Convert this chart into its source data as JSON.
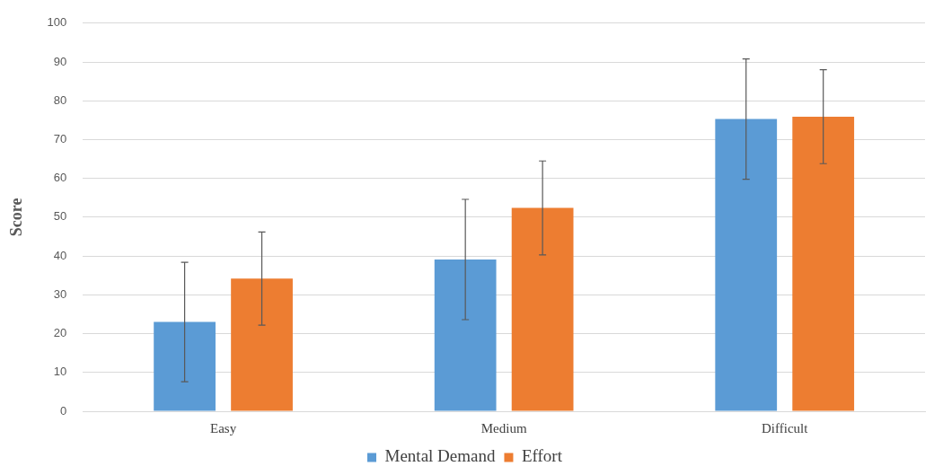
{
  "chart_data": {
    "type": "bar",
    "ylabel": "Score",
    "categories": [
      "Easy",
      "Medium",
      "Difficult"
    ],
    "series": [
      {
        "name": "Mental Demand",
        "color": "#5b9bd5",
        "values": [
          23,
          39.1,
          75.3
        ],
        "errors": [
          15.4,
          15.5,
          15.5
        ]
      },
      {
        "name": "Effort",
        "color": "#ed7d31",
        "values": [
          34.2,
          52.4,
          75.9
        ],
        "errors": [
          12,
          12.1,
          12.1
        ]
      }
    ],
    "ylim": [
      0,
      100
    ],
    "yticks": [
      0,
      10,
      20,
      30,
      40,
      50,
      60,
      70,
      80,
      90,
      100
    ],
    "grid": "y",
    "legend": "bottom"
  }
}
